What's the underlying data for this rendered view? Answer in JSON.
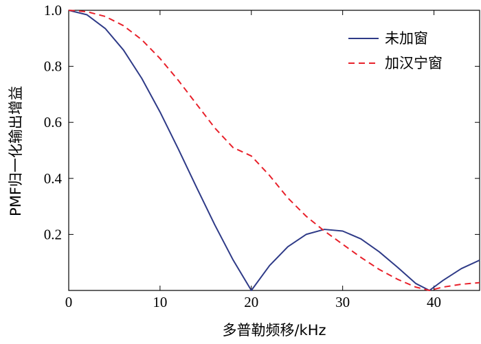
{
  "chart_data": {
    "type": "line",
    "title": "",
    "xlabel": "多普勒频移/kHz",
    "ylabel": "PMF归一化输出增益",
    "xlim": [
      0,
      45
    ],
    "ylim": [
      0,
      1
    ],
    "x_ticks": [
      0,
      10,
      20,
      30,
      40
    ],
    "x_tick_labels": [
      "0",
      "10",
      "20",
      "30",
      "40"
    ],
    "y_ticks": [
      0.2,
      0.4,
      0.6,
      0.8,
      1.0
    ],
    "y_tick_labels": [
      "0.2",
      "0.4",
      "0.6",
      "0.8",
      "1.0"
    ],
    "grid": false,
    "legend_position": "top-right",
    "series": [
      {
        "name": "未加窗",
        "color": "#2e3a87",
        "line_style": "solid",
        "x": [
          0,
          2,
          4,
          6,
          8,
          10,
          12,
          14,
          16,
          18,
          20,
          22,
          24,
          26,
          28,
          30,
          32,
          34,
          36,
          38,
          39.5,
          41,
          43,
          45
        ],
        "y": [
          1.0,
          0.984,
          0.935,
          0.858,
          0.757,
          0.637,
          0.505,
          0.368,
          0.234,
          0.109,
          0.0,
          0.089,
          0.156,
          0.2,
          0.218,
          0.212,
          0.184,
          0.138,
          0.083,
          0.025,
          0.0,
          0.036,
          0.078,
          0.108
        ]
      },
      {
        "name": "加汉宁窗",
        "color": "#e8202a",
        "line_style": "dashed",
        "x": [
          0,
          2,
          4,
          6,
          8,
          10,
          12,
          14,
          16,
          18,
          20,
          22,
          24,
          26,
          28,
          30,
          32,
          34,
          36,
          38,
          39.5,
          41,
          43,
          45
        ],
        "y": [
          1.0,
          0.995,
          0.978,
          0.945,
          0.895,
          0.828,
          0.75,
          0.665,
          0.58,
          0.51,
          0.48,
          0.41,
          0.33,
          0.265,
          0.212,
          0.165,
          0.118,
          0.075,
          0.04,
          0.012,
          0.0,
          0.012,
          0.022,
          0.028
        ]
      }
    ]
  }
}
